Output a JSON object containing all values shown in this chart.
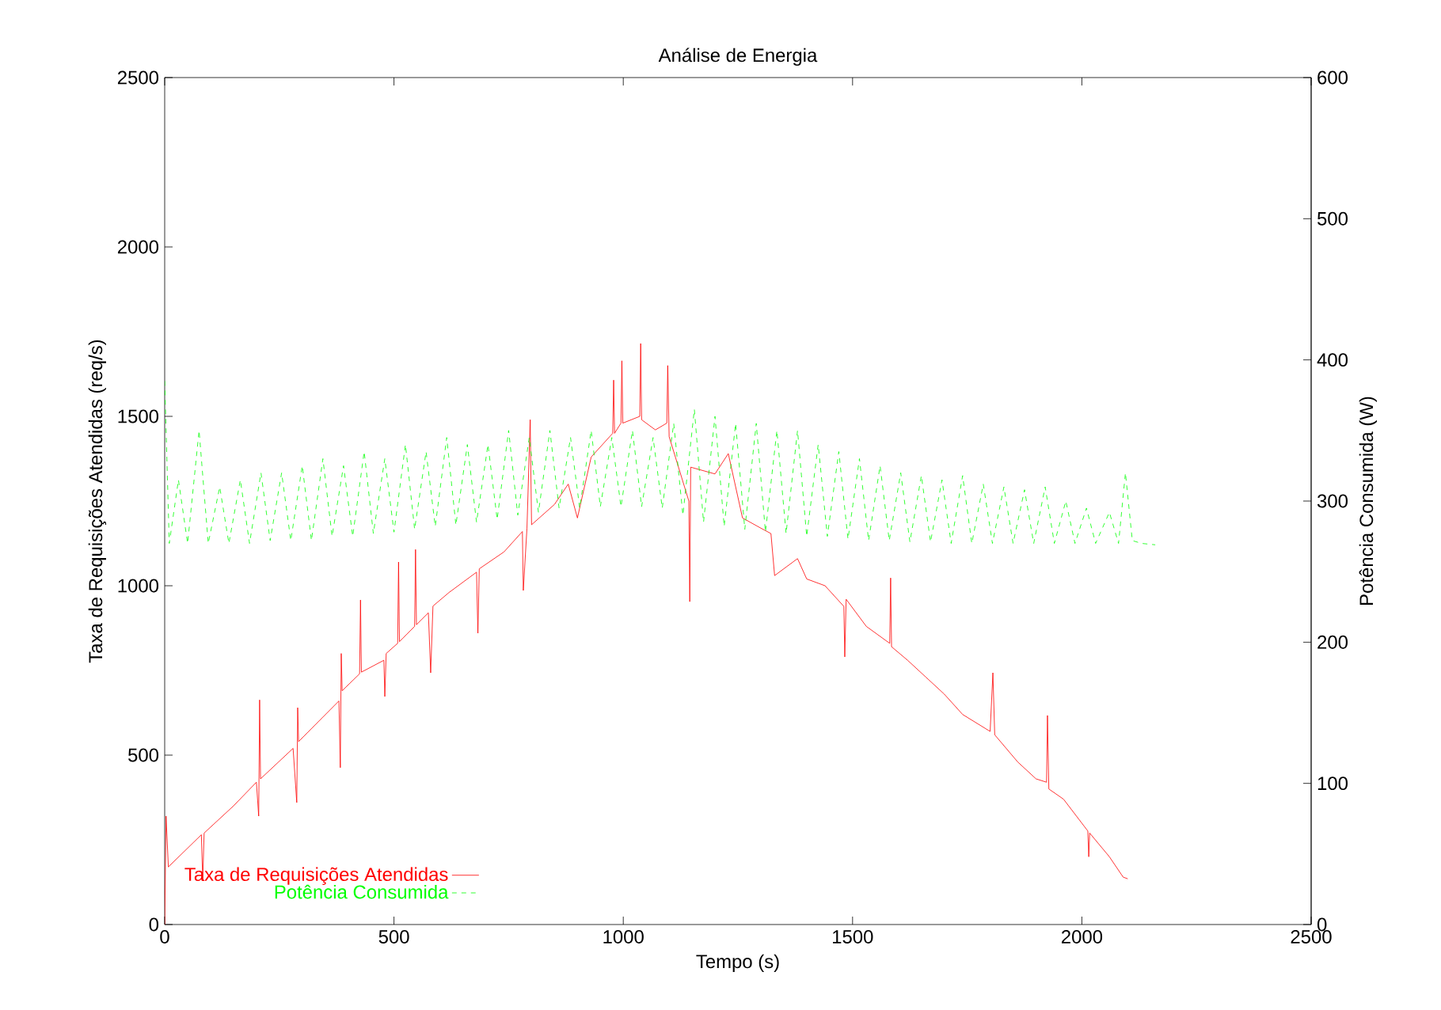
{
  "chart_data": {
    "type": "line",
    "title": "Análise de Energia",
    "xlabel": "Tempo (s)",
    "ylabel": "Taxa de Requisições Atendidas (req/s)",
    "y2label": "Potência Consumida (W)",
    "xlim": [
      0,
      2500
    ],
    "xticks": [
      0,
      500,
      1000,
      1500,
      2000,
      2500
    ],
    "ylim": [
      0,
      2500
    ],
    "yticks": [
      0,
      500,
      1000,
      1500,
      2000,
      2500
    ],
    "y2lim": [
      0,
      600
    ],
    "y2ticks": [
      0,
      100,
      200,
      300,
      400,
      500,
      600
    ],
    "grid": false,
    "legend": "bottom left",
    "marker": "none",
    "series": [
      {
        "name": "Taxa de Requisições Atendidas",
        "color": "#ff0000",
        "line_style": "solid",
        "axis": "y",
        "x": [
          0,
          3,
          8,
          80,
          83,
          86,
          150,
          200,
          205,
          207,
          209,
          280,
          288,
          290,
          292,
          380,
          383,
          385,
          387,
          425,
          427,
          429,
          478,
          480,
          483,
          508,
          510,
          512,
          545,
          547,
          549,
          575,
          580,
          585,
          620,
          680,
          683,
          686,
          740,
          780,
          782,
          790,
          797,
          800,
          850,
          880,
          900,
          930,
          977,
          979,
          981,
          995,
          997,
          999,
          1036,
          1038,
          1040,
          1070,
          1095,
          1097,
          1100,
          1143,
          1145,
          1147,
          1200,
          1229,
          1260,
          1300,
          1322,
          1330,
          1380,
          1400,
          1440,
          1481,
          1483,
          1486,
          1530,
          1581,
          1583,
          1585,
          1620,
          1660,
          1700,
          1740,
          1800,
          1806,
          1810,
          1860,
          1900,
          1923,
          1925,
          1928,
          1960,
          2013,
          2015,
          2017,
          2060,
          2090,
          2100
        ],
        "values": [
          0,
          320,
          170,
          265,
          130,
          270,
          350,
          420,
          320,
          663,
          430,
          520,
          360,
          640,
          540,
          660,
          463,
          800,
          690,
          740,
          958,
          745,
          780,
          673,
          800,
          830,
          1070,
          835,
          880,
          1107,
          885,
          920,
          743,
          940,
          980,
          1040,
          860,
          1050,
          1100,
          1160,
          986,
          1170,
          1490,
          1180,
          1240,
          1300,
          1200,
          1380,
          1450,
          1607,
          1450,
          1480,
          1664,
          1480,
          1500,
          1715,
          1490,
          1460,
          1480,
          1650,
          1440,
          1250,
          953,
          1350,
          1330,
          1390,
          1200,
          1170,
          1154,
          1030,
          1080,
          1020,
          1000,
          939,
          790,
          960,
          880,
          830,
          1023,
          820,
          780,
          730,
          680,
          620,
          570,
          743,
          560,
          480,
          430,
          420,
          617,
          400,
          370,
          276,
          200,
          270,
          200,
          140,
          135
        ]
      },
      {
        "name": "Potência Consumida",
        "color": "#00ff00",
        "line_style": "dashed",
        "axis": "y2",
        "x": [
          0,
          10,
          30,
          50,
          75,
          95,
          120,
          140,
          165,
          185,
          210,
          230,
          255,
          275,
          300,
          320,
          345,
          365,
          390,
          410,
          435,
          455,
          480,
          500,
          525,
          545,
          570,
          590,
          615,
          635,
          660,
          680,
          705,
          725,
          750,
          770,
          795,
          815,
          840,
          860,
          885,
          905,
          930,
          950,
          975,
          995,
          1020,
          1040,
          1065,
          1085,
          1110,
          1130,
          1155,
          1175,
          1200,
          1220,
          1245,
          1265,
          1290,
          1310,
          1335,
          1355,
          1380,
          1400,
          1425,
          1445,
          1470,
          1490,
          1515,
          1535,
          1560,
          1580,
          1605,
          1625,
          1650,
          1670,
          1695,
          1715,
          1740,
          1760,
          1785,
          1805,
          1830,
          1850,
          1875,
          1895,
          1920,
          1940,
          1965,
          1985,
          2010,
          2030,
          2060,
          2080,
          2095,
          2110,
          2130,
          2160
        ],
        "values": [
          385,
          270,
          315,
          270,
          350,
          270,
          310,
          270,
          315,
          270,
          320,
          272,
          320,
          272,
          325,
          272,
          330,
          275,
          325,
          275,
          335,
          277,
          330,
          278,
          340,
          280,
          335,
          282,
          345,
          283,
          340,
          285,
          340,
          287,
          350,
          290,
          345,
          292,
          350,
          295,
          345,
          295,
          350,
          296,
          345,
          296,
          350,
          296,
          345,
          295,
          355,
          290,
          365,
          285,
          360,
          282,
          355,
          280,
          355,
          278,
          350,
          277,
          350,
          275,
          340,
          275,
          335,
          273,
          330,
          272,
          325,
          272,
          320,
          271,
          318,
          271,
          315,
          270,
          318,
          270,
          312,
          270,
          310,
          270,
          308,
          270,
          310,
          270,
          300,
          270,
          295,
          270,
          292,
          270,
          320,
          272,
          270,
          269
        ]
      }
    ]
  }
}
